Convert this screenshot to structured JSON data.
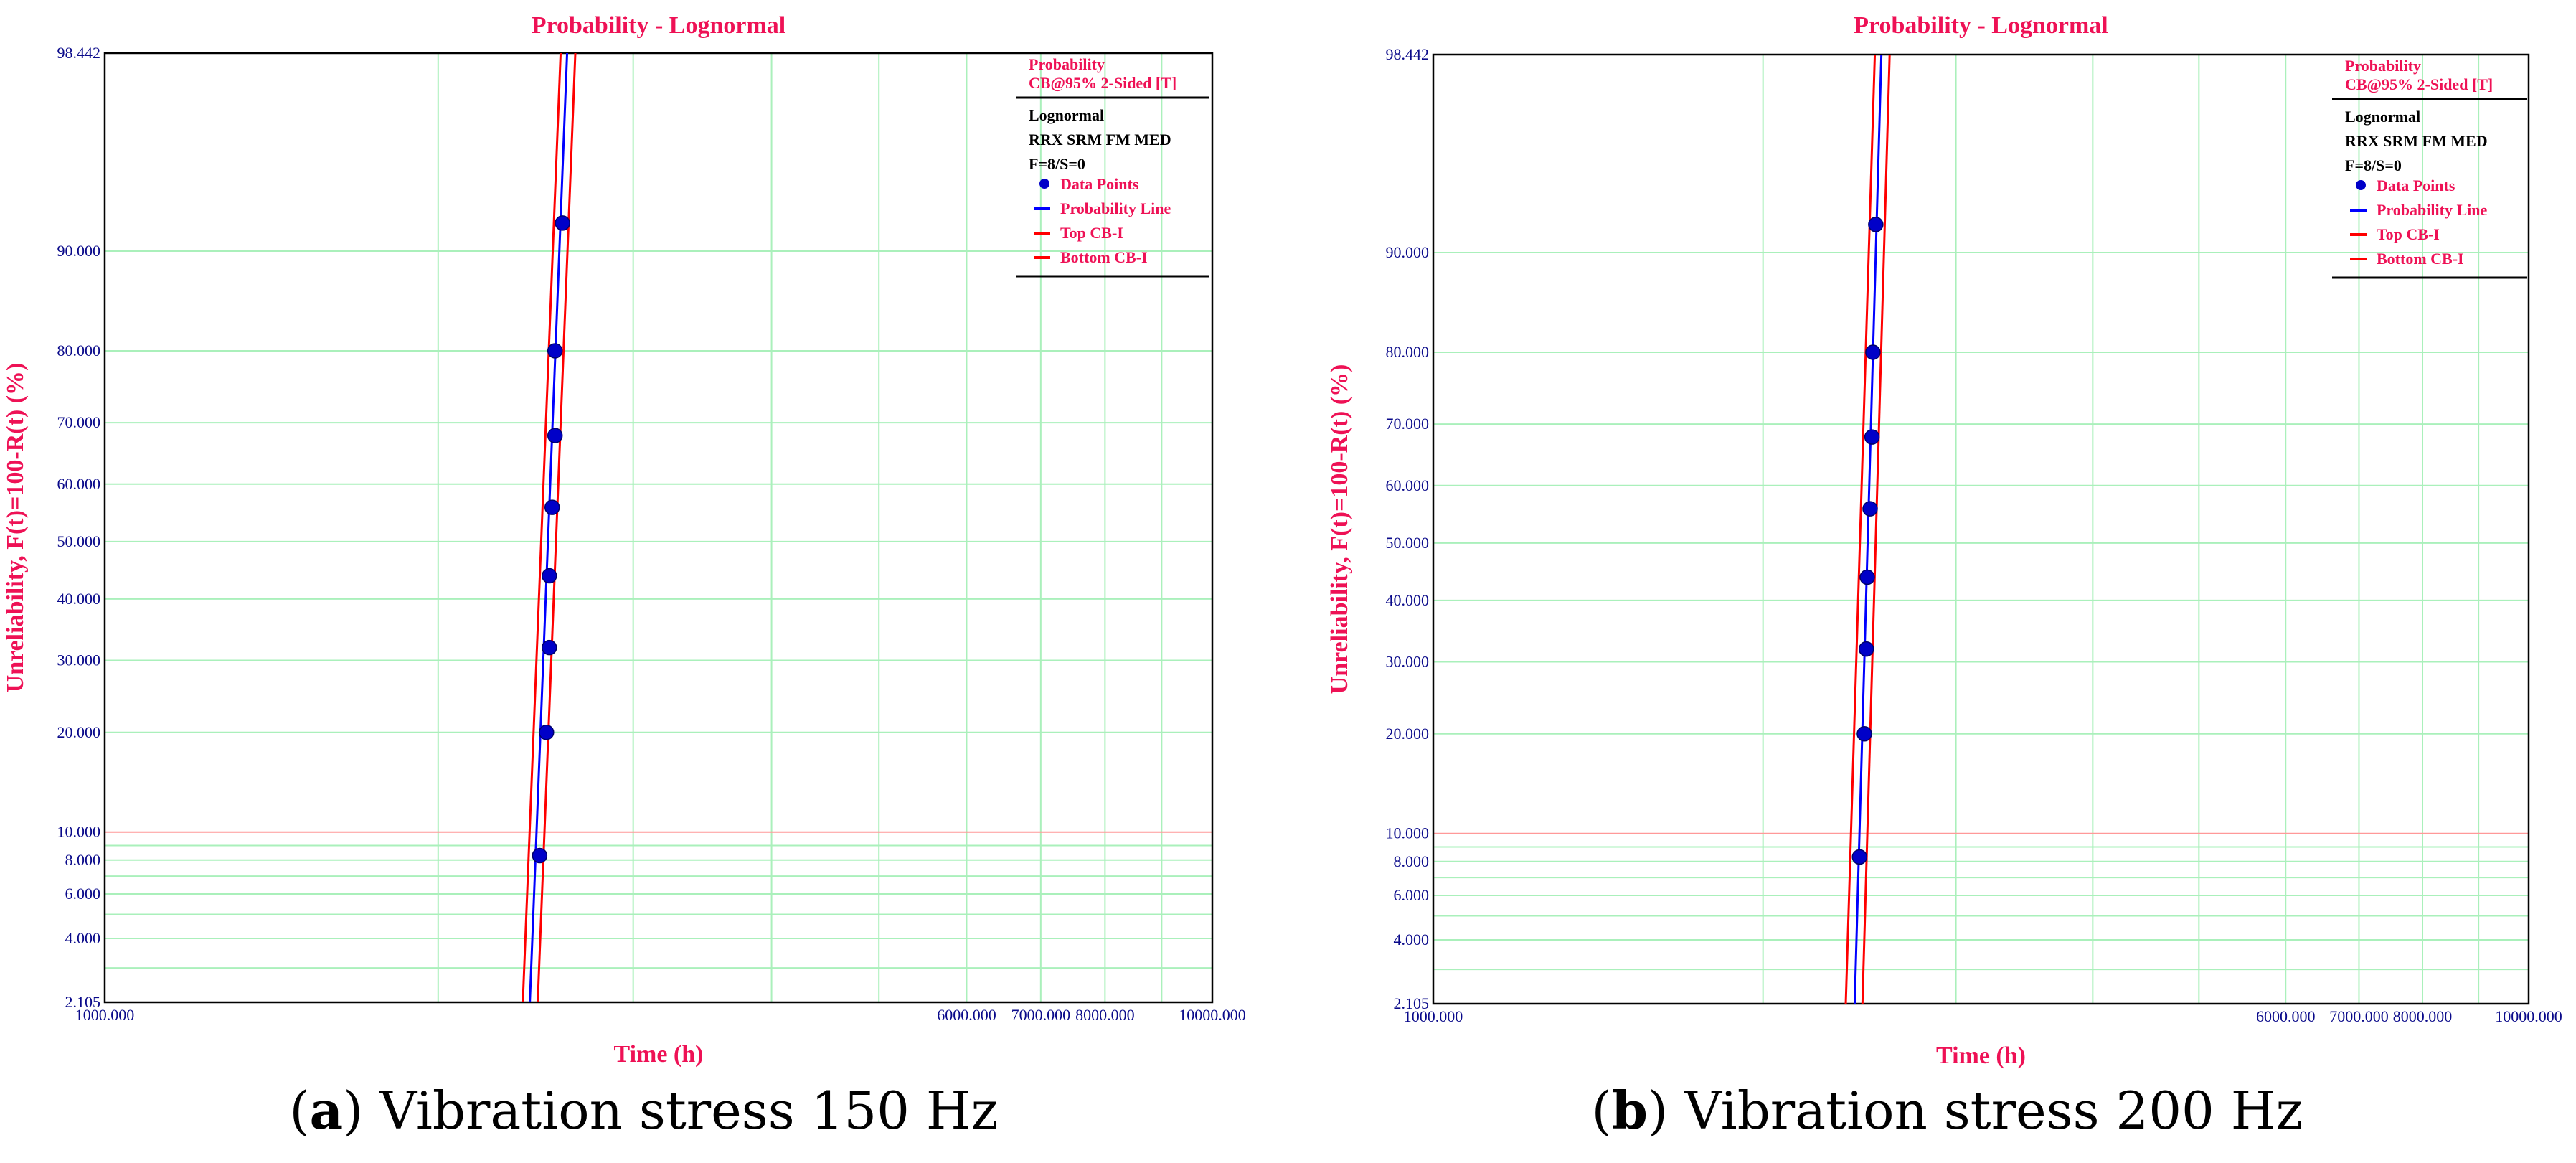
{
  "chart_data": [
    {
      "type": "scatter",
      "panel_label": "a",
      "caption": "Vibration stress 150 Hz",
      "title": "Probability - Lognormal",
      "xlabel": "Time  (h)",
      "ylabel": "Unreliability, F(t)=100-R(t) (%)",
      "xscale": "log",
      "yscale": "lognormal-probability",
      "xlim": [
        1000,
        10000
      ],
      "ylim": [
        2.105,
        98.442
      ],
      "x_ticks": [
        "1000.000",
        "6000.000",
        "7000.000",
        "8000.000",
        "10000.000"
      ],
      "y_ticks": [
        "98.442",
        "90.000",
        "80.000",
        "70.000",
        "60.000",
        "50.000",
        "40.000",
        "30.000",
        "20.000",
        "10.000",
        "8.000",
        "6.000",
        "4.000",
        "2.105"
      ],
      "legend": {
        "header_line1": "Probability",
        "header_line2": "CB@95% 2-Sided [T]",
        "model": "Lognormal",
        "descriptor": "RRX SRM FM MED",
        "counts": "F=8/S=0",
        "entries": [
          {
            "label": "Data Points",
            "kind": "marker",
            "color": "#0000c8"
          },
          {
            "label": "Probability Line",
            "kind": "line",
            "color": "#0000ff"
          },
          {
            "label": "Top CB-I",
            "kind": "line",
            "color": "#ff0000"
          },
          {
            "label": "Bottom CB-I",
            "kind": "line",
            "color": "#ff0000"
          }
        ]
      },
      "points": [
        {
          "x": 2470,
          "y": 8.3
        },
        {
          "x": 2505,
          "y": 20
        },
        {
          "x": 2520,
          "y": 32
        },
        {
          "x": 2520,
          "y": 44
        },
        {
          "x": 2535,
          "y": 56
        },
        {
          "x": 2550,
          "y": 68
        },
        {
          "x": 2550,
          "y": 80
        },
        {
          "x": 2590,
          "y": 92
        }
      ],
      "probability_line": {
        "x_at_ymin": 2420,
        "x_at_ymax": 2615
      },
      "top_cb": {
        "x_at_ymin": 2385,
        "x_at_ymax": 2580
      },
      "bottom_cb": {
        "x_at_ymin": 2460,
        "x_at_ymax": 2660
      }
    },
    {
      "type": "scatter",
      "panel_label": "b",
      "caption": "Vibration stress 200 Hz",
      "title": "Probability - Lognormal",
      "xlabel": "Time  (h)",
      "ylabel": "Unreliability, F(t)=100-R(t) (%)",
      "xscale": "log",
      "yscale": "lognormal-probability",
      "xlim": [
        1000,
        10000
      ],
      "ylim": [
        2.105,
        98.442
      ],
      "x_ticks": [
        "1000.000",
        "6000.000",
        "7000.000",
        "8000.000",
        "10000.000"
      ],
      "y_ticks": [
        "98.442",
        "90.000",
        "80.000",
        "70.000",
        "60.000",
        "50.000",
        "40.000",
        "30.000",
        "20.000",
        "10.000",
        "8.000",
        "6.000",
        "4.000",
        "2.105"
      ],
      "legend": {
        "header_line1": "Probability",
        "header_line2": "CB@95% 2-Sided [T]",
        "model": "Lognormal",
        "descriptor": "RRX SRM FM MED",
        "counts": "F=8/S=0",
        "entries": [
          {
            "label": "Data Points",
            "kind": "marker",
            "color": "#0000c8"
          },
          {
            "label": "Probability Line",
            "kind": "line",
            "color": "#0000ff"
          },
          {
            "label": "Top CB-I",
            "kind": "line",
            "color": "#ff0000"
          },
          {
            "label": "Bottom CB-I",
            "kind": "line",
            "color": "#ff0000"
          }
        ]
      },
      "points": [
        {
          "x": 2450,
          "y": 8.3
        },
        {
          "x": 2475,
          "y": 20
        },
        {
          "x": 2485,
          "y": 32
        },
        {
          "x": 2490,
          "y": 44
        },
        {
          "x": 2505,
          "y": 56
        },
        {
          "x": 2515,
          "y": 68
        },
        {
          "x": 2520,
          "y": 80
        },
        {
          "x": 2535,
          "y": 92
        }
      ],
      "probability_line": {
        "x_at_ymin": 2425,
        "x_at_ymax": 2565
      },
      "top_cb": {
        "x_at_ymin": 2380,
        "x_at_ymax": 2530
      },
      "bottom_cb": {
        "x_at_ymin": 2465,
        "x_at_ymax": 2610
      }
    }
  ],
  "colors": {
    "title": "#ee1155",
    "tick": "#0a0a8a",
    "grid": "#aaf0bb",
    "grid_red": "#ff9999",
    "prob_line": "#0000ff",
    "cb_line": "#ff0000",
    "point": "#0000c8"
  }
}
